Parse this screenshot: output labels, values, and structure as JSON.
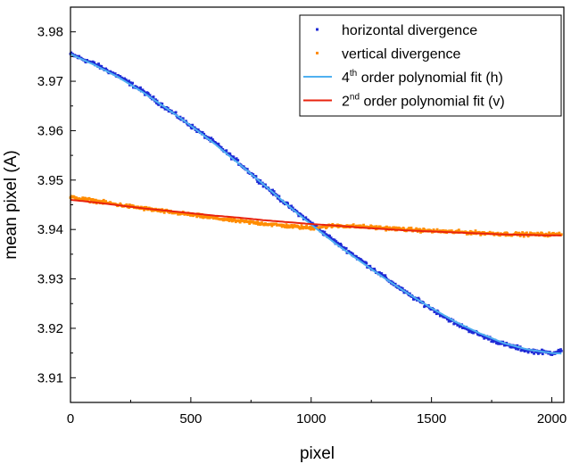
{
  "chart_data": {
    "type": "scatter",
    "xlabel": "pixel",
    "ylabel": "mean pixel (A)",
    "xlim": [
      0,
      2050
    ],
    "ylim": [
      3.905,
      3.985
    ],
    "x_ticks": [
      0,
      500,
      1000,
      1500,
      2000
    ],
    "x_tick_labels": [
      "0",
      "500",
      "1000",
      "1500",
      "2000"
    ],
    "y_ticks": [
      3.91,
      3.92,
      3.93,
      3.94,
      3.95,
      3.96,
      3.97,
      3.98
    ],
    "y_tick_labels": [
      "3.91",
      "3.92",
      "3.93",
      "3.94",
      "3.95",
      "3.96",
      "3.97",
      "3.98"
    ],
    "grid": false,
    "legend_position": "top-right",
    "series": [
      {
        "name": "horizontal divergence",
        "kind": "scatter",
        "color": "#1f2bd6",
        "x": [
          0,
          100,
          200,
          300,
          400,
          500,
          600,
          700,
          800,
          900,
          1000,
          1100,
          1200,
          1300,
          1400,
          1500,
          1600,
          1700,
          1800,
          1900,
          2000,
          2040
        ],
        "y": [
          3.9755,
          3.9735,
          3.971,
          3.968,
          3.9645,
          3.961,
          3.9575,
          3.9535,
          3.9492,
          3.945,
          3.9413,
          3.9375,
          3.934,
          3.9305,
          3.927,
          3.924,
          3.921,
          3.9187,
          3.9168,
          3.9155,
          3.915,
          3.9155
        ]
      },
      {
        "name": "vertical divergence",
        "kind": "scatter",
        "color": "#ff8c00",
        "x": [
          0,
          100,
          200,
          300,
          400,
          500,
          600,
          700,
          800,
          900,
          1000,
          1100,
          1200,
          1300,
          1400,
          1500,
          1600,
          1700,
          1800,
          1900,
          2000,
          2040
        ],
        "y": [
          3.9465,
          3.9458,
          3.945,
          3.9443,
          3.9436,
          3.943,
          3.9423,
          3.9417,
          3.9412,
          3.9407,
          3.9403,
          3.9408,
          3.9406,
          3.9403,
          3.94,
          3.9397,
          3.9395,
          3.9393,
          3.9391,
          3.939,
          3.939,
          3.939
        ]
      },
      {
        "name": "4th order polynomial fit (h)",
        "name_base": "4",
        "name_sup": "th",
        "name_rest": " order polynomial fit (h)",
        "kind": "line",
        "color": "#4fb0f0",
        "x": [
          0,
          100,
          200,
          300,
          400,
          500,
          600,
          700,
          800,
          900,
          1000,
          1100,
          1200,
          1300,
          1400,
          1500,
          1600,
          1700,
          1800,
          1900,
          2000,
          2040
        ],
        "y": [
          3.9755,
          3.9733,
          3.9708,
          3.9678,
          3.9645,
          3.961,
          3.9573,
          3.9533,
          3.9492,
          3.945,
          3.941,
          3.9372,
          3.9337,
          3.9303,
          3.9271,
          3.9241,
          3.9213,
          3.919,
          3.917,
          3.9157,
          3.915,
          3.9149
        ]
      },
      {
        "name": "2nd order polynomial fit (v)",
        "name_base": "2",
        "name_sup": "nd",
        "name_rest": " order polynomial fit (v)",
        "kind": "line",
        "color": "#e8230e",
        "x": [
          0,
          100,
          200,
          300,
          400,
          500,
          600,
          700,
          800,
          900,
          1000,
          1100,
          1200,
          1300,
          1400,
          1500,
          1600,
          1700,
          1800,
          1900,
          2000,
          2040
        ],
        "y": [
          3.946,
          3.9455,
          3.9449,
          3.9443,
          3.9438,
          3.9433,
          3.9428,
          3.9424,
          3.9419,
          3.9415,
          3.9411,
          3.9408,
          3.9404,
          3.9401,
          3.9398,
          3.9396,
          3.9394,
          3.9392,
          3.939,
          3.9389,
          3.9388,
          3.9388
        ]
      }
    ]
  }
}
